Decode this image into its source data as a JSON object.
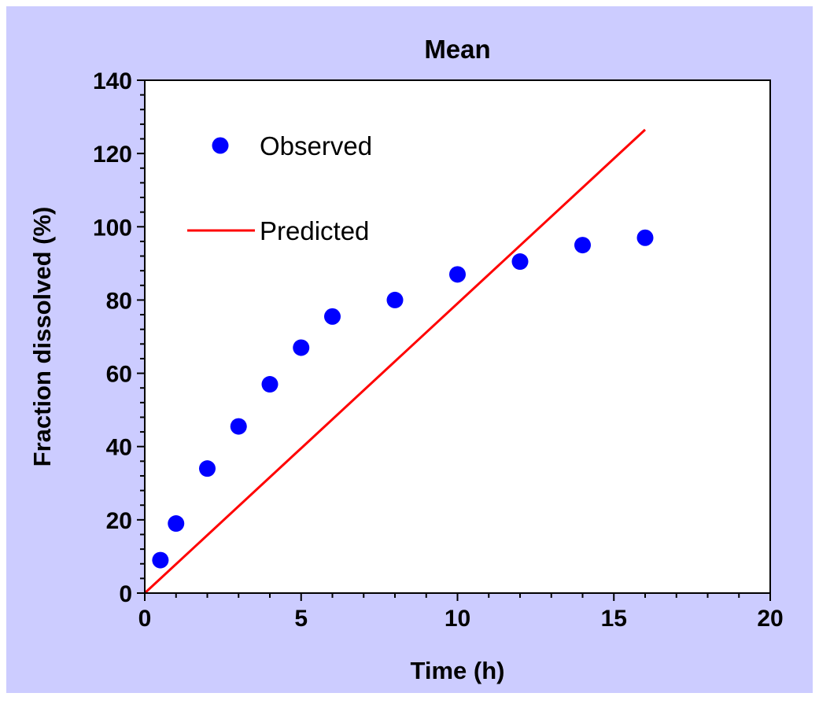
{
  "chart_data": {
    "type": "scatter",
    "title": "Mean",
    "xlabel": "Time (h)",
    "ylabel": "Fraction dissolved (%)",
    "xlim": [
      0,
      20
    ],
    "ylim": [
      0,
      140
    ],
    "xticks": [
      0,
      5,
      10,
      15,
      20
    ],
    "yticks": [
      0,
      20,
      40,
      60,
      80,
      100,
      120,
      140
    ],
    "grid": false,
    "legend_position": "top-left",
    "background_color": "#ccccff",
    "plot_background_color": "#ffffff",
    "series": [
      {
        "name": "Observed",
        "kind": "scatter",
        "color": "#0000ff",
        "x": [
          0.5,
          1,
          2,
          3,
          4,
          5,
          6,
          8,
          10,
          12,
          14,
          16
        ],
        "y": [
          9,
          19,
          34,
          45.5,
          57,
          67,
          75.5,
          80,
          87,
          90.5,
          95,
          97
        ]
      },
      {
        "name": "Predicted",
        "kind": "line",
        "color": "#ff0000",
        "x": [
          0,
          16
        ],
        "y": [
          0,
          126.5
        ]
      }
    ]
  }
}
